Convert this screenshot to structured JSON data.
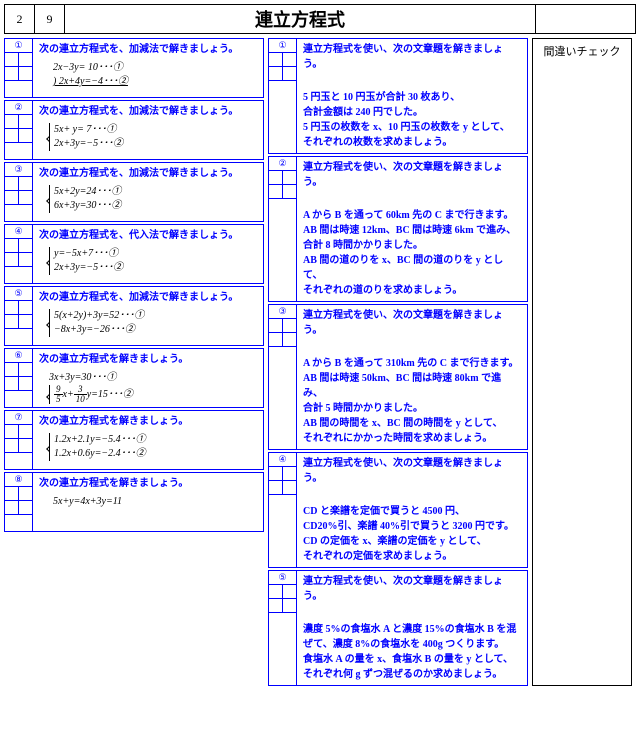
{
  "header": {
    "num1": "2",
    "num2": "9",
    "title": "連立方程式"
  },
  "colors": {
    "border_blue": "#0000ff",
    "text_blue": "#0000ff",
    "black": "#000000"
  },
  "left": [
    {
      "num": "①",
      "title": "次の連立方程式を、加減法で解きましょう。",
      "eqs": [
        "2x−3y=  10･･･①",
        ") 2x+4y=−4･･･②"
      ],
      "eq2_underline": true
    },
    {
      "num": "②",
      "title": "次の連立方程式を、加減法で解きましょう。",
      "brace_eqs": [
        "5x+  y=   7･･･①",
        "2x+3y=−5･･･②"
      ]
    },
    {
      "num": "③",
      "title": "次の連立方程式を、加減法で解きましょう。",
      "brace_eqs": [
        "5x+2y=24･･･①",
        "6x+3y=30･･･②"
      ]
    },
    {
      "num": "④",
      "title": "次の連立方程式を、代入法で解きましょう。",
      "brace_eqs": [
        "y=−5x+7･･･①",
        "2x+3y=−5･･･②"
      ]
    },
    {
      "num": "⑤",
      "title": "次の連立方程式を、加減法で解きましょう。",
      "brace_eqs": [
        "5(x+2y)+3y=52･･･①",
        "−8x+3y=−26･･･②"
      ]
    },
    {
      "num": "⑥",
      "title": "次の連立方程式を解きましょう。",
      "brace_eqs_html": [
        "3x+3y=30･･･①",
        "FRAC95x+FRAC310y=15･･･②"
      ]
    },
    {
      "num": "⑦",
      "title": "次の連立方程式を解きましょう。",
      "brace_eqs": [
        "1.2x+2.1y=−5.4･･･①",
        "1.2x+0.6y=−2.4･･･②"
      ]
    },
    {
      "num": "⑧",
      "title": "次の連立方程式を解きましょう。",
      "eqs": [
        "5x+y=4x+3y=11"
      ]
    }
  ],
  "mid": [
    {
      "num": "①",
      "title": "連立方程式を使い、次の文章題を解きましょう。",
      "text": [
        "",
        "5 円玉と 10 円玉が合計 30 枚あり、",
        "合計金額は 240 円でした。",
        "5 円玉の枚数を x、10 円玉の枚数を y として、",
        "それぞれの枚数を求めましょう。"
      ]
    },
    {
      "num": "②",
      "title": "連立方程式を使い、次の文章題を解きましょう。",
      "text": [
        "",
        "A から B を通って 60km 先の C まで行きます。",
        "AB 間は時速 12km、BC 間は時速 6km で進み、",
        "合計 8 時間かかりました。",
        "AB 間の道のりを x、BC 間の道のりを y として、",
        "それぞれの道のりを求めましょう。"
      ]
    },
    {
      "num": "③",
      "title": "連立方程式を使い、次の文章題を解きましょう。",
      "text": [
        "",
        "A から B を通って 310km 先の C まで行きます。",
        "AB 間は時速 50km、BC 間は時速 80km で進み、",
        "合計 5 時間かかりました。",
        "AB 間の時間を x、BC 間の時間を y として、",
        "それぞれにかかった時間を求めましょう。"
      ]
    },
    {
      "num": "④",
      "title": "連立方程式を使い、次の文章題を解きましょう。",
      "text": [
        "",
        "CD と楽譜を定価で買うと 4500 円、",
        "CD20%引、楽譜 40%引で買うと 3200 円です。",
        "CD の定価を x、楽譜の定価を y として、",
        "それぞれの定価を求めましょう。"
      ]
    },
    {
      "num": "⑤",
      "title": "連立方程式を使い、次の文章題を解きましょう。",
      "text": [
        "",
        "濃度 5%の食塩水 A と濃度 15%の食塩水 B を混",
        "ぜて、濃度 8%の食塩水を 400g つくります。",
        "食塩水 A の量を x、食塩水 B の量を y として、",
        "それぞれ何 g ずつ混ぜるのか求めましょう。"
      ]
    }
  ],
  "right": {
    "label": "間違いチェック"
  }
}
